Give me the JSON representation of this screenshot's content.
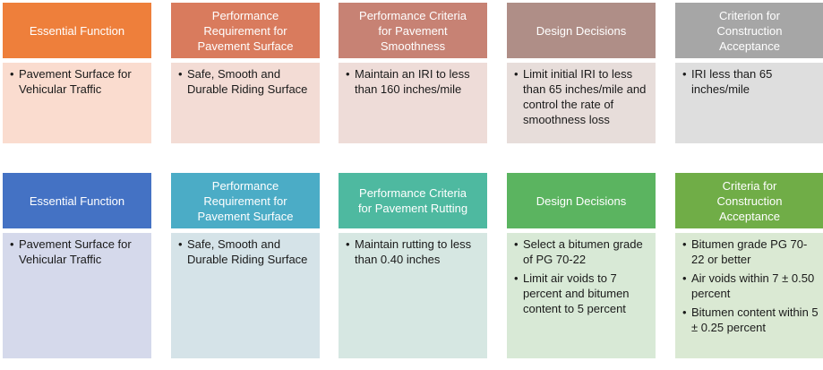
{
  "rows": [
    {
      "cards": [
        {
          "title": "Essential Function",
          "bullets": [
            "Pavement Surface for Vehicular Traffic"
          ],
          "head_color": "#EE7F3B",
          "body_color": "#FADCCF"
        },
        {
          "title": "Performance\nRequirement for\nPavement Surface",
          "bullets": [
            "Safe, Smooth and Durable Riding Surface"
          ],
          "head_color": "#D97B5D",
          "body_color": "#F3DCD5"
        },
        {
          "title": "Performance Criteria\nfor Pavement\nSmoothness",
          "bullets": [
            "Maintain an IRI to less than 160 inches/mile"
          ],
          "head_color": "#C78274",
          "body_color": "#EEDCD8"
        },
        {
          "title": "Design Decisions",
          "bullets": [
            "Limit initial IRI to less than 65 inches/mile and control the rate of smoothness loss"
          ],
          "head_color": "#AF8E87",
          "body_color": "#E7DDDA"
        },
        {
          "title": "Criterion for\nConstruction\nAcceptance",
          "bullets": [
            "IRI less than 65 inches/mile"
          ],
          "head_color": "#A6A6A6",
          "body_color": "#DEDEDE"
        }
      ]
    },
    {
      "cards": [
        {
          "title": "Essential Function",
          "bullets": [
            "Pavement Surface for Vehicular Traffic"
          ],
          "head_color": "#4472C4",
          "body_color": "#D5D9EB"
        },
        {
          "title": "Performance\nRequirement for\nPavement Surface",
          "bullets": [
            "Safe, Smooth and Durable Riding Surface"
          ],
          "head_color": "#4BACC6",
          "body_color": "#D5E3E8"
        },
        {
          "title": "Performance Criteria\nfor Pavement Rutting",
          "bullets": [
            "Maintain rutting to less than 0.40 inches"
          ],
          "head_color": "#4EB9A0",
          "body_color": "#D6E7E2"
        },
        {
          "title": "Design Decisions",
          "bullets": [
            "Select a bitumen grade of PG 70-22",
            "Limit air voids to 7 percent and bitumen content to 5 percent"
          ],
          "head_color": "#5BB460",
          "body_color": "#D8E9D6"
        },
        {
          "title": "Criteria for\nConstruction\nAcceptance",
          "bullets": [
            "Bitumen grade PG 70-22 or better",
            "Air voids within 7 ± 0.50 percent",
            "Bitumen content within 5 ± 0.25 percent"
          ],
          "head_color": "#70AD47",
          "body_color": "#DAE9D3"
        }
      ]
    }
  ]
}
